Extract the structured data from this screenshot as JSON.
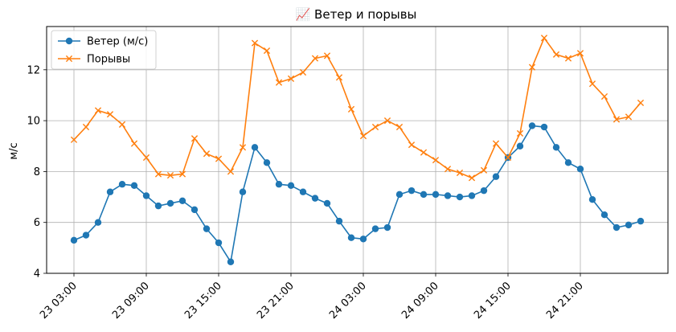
{
  "chart_data": {
    "type": "line",
    "title": "📈 Ветер и порывы",
    "title_icon": "chart-increasing-icon",
    "xlabel": "",
    "ylabel": "м/с",
    "ylim": [
      4,
      13.7
    ],
    "yticks": [
      4,
      6,
      8,
      10,
      12
    ],
    "grid": true,
    "legend_position": "upper-left",
    "x_unit": "hours",
    "x": [
      "23 03:00",
      "23 04:00",
      "23 05:00",
      "23 06:00",
      "23 07:00",
      "23 08:00",
      "23 09:00",
      "23 10:00",
      "23 11:00",
      "23 12:00",
      "23 13:00",
      "23 14:00",
      "23 15:00",
      "23 16:00",
      "23 17:00",
      "23 18:00",
      "23 19:00",
      "23 20:00",
      "23 21:00",
      "23 22:00",
      "23 23:00",
      "24 00:00",
      "24 01:00",
      "24 02:00",
      "24 03:00",
      "24 04:00",
      "24 05:00",
      "24 06:00",
      "24 07:00",
      "24 08:00",
      "24 09:00",
      "24 10:00",
      "24 11:00",
      "24 12:00",
      "24 13:00",
      "24 14:00",
      "24 15:00",
      "24 16:00",
      "24 17:00",
      "24 18:00",
      "24 19:00",
      "24 20:00",
      "24 21:00",
      "24 22:00",
      "24 23:00",
      "25 00:00",
      "25 01:00",
      "25 02:00"
    ],
    "xticks": [
      "23 03:00",
      "23 09:00",
      "23 15:00",
      "23 21:00",
      "24 03:00",
      "24 09:00",
      "24 15:00",
      "24 21:00"
    ],
    "series": [
      {
        "name": "Ветер (м/с)",
        "color": "#1f77b4",
        "marker": "circle",
        "values": [
          5.3,
          5.5,
          6.0,
          7.2,
          7.5,
          7.45,
          7.05,
          6.65,
          6.75,
          6.85,
          6.5,
          5.75,
          5.2,
          4.45,
          7.2,
          8.95,
          8.35,
          7.5,
          7.45,
          7.2,
          6.95,
          6.75,
          6.05,
          5.4,
          5.35,
          5.75,
          5.8,
          7.1,
          7.25,
          7.1,
          7.1,
          7.05,
          7.0,
          7.05,
          7.25,
          7.8,
          8.55,
          9.0,
          9.8,
          9.75,
          8.95,
          8.35,
          8.1,
          6.9,
          6.3,
          5.8,
          5.9,
          6.05
        ]
      },
      {
        "name": "Порывы",
        "color": "#ff7f0e",
        "marker": "x",
        "values": [
          9.25,
          9.75,
          10.4,
          10.25,
          9.85,
          9.1,
          8.55,
          7.9,
          7.85,
          7.9,
          9.3,
          8.7,
          8.5,
          8.0,
          8.95,
          13.05,
          12.75,
          11.5,
          11.65,
          11.9,
          12.45,
          12.55,
          11.7,
          10.45,
          9.4,
          9.75,
          10.0,
          9.75,
          9.05,
          8.75,
          8.45,
          8.1,
          7.95,
          7.75,
          8.05,
          9.1,
          8.55,
          9.5,
          12.1,
          13.25,
          12.6,
          12.45,
          12.65,
          11.45,
          10.95,
          10.05,
          10.15,
          10.7
        ]
      }
    ]
  }
}
